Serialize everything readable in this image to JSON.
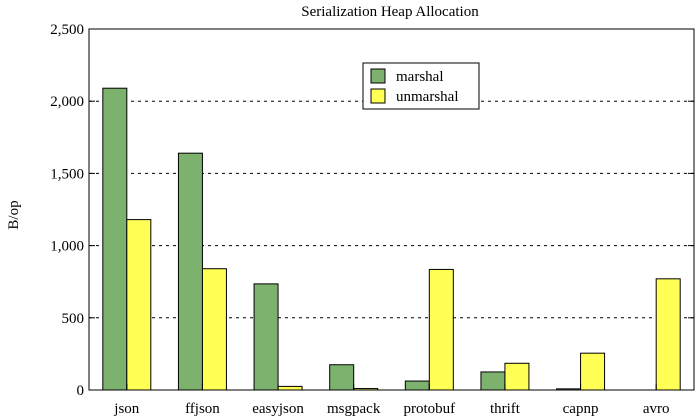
{
  "chart_data": {
    "type": "bar",
    "title": "Serialization Heap Allocation",
    "xlabel": "",
    "ylabel": "B/op",
    "ylim": [
      0,
      2500
    ],
    "yticks": [
      0,
      500,
      1000,
      1500,
      2000,
      2500
    ],
    "ytick_labels": [
      "0",
      "500",
      "1,000",
      "1,500",
      "2,000",
      "2,500"
    ],
    "grid": "horizontal dashed",
    "legend_position": "top-center",
    "categories": [
      "json",
      "ffjson",
      "easyjson",
      "msgpack",
      "protobuf",
      "thrift",
      "capnp",
      "avro"
    ],
    "series": [
      {
        "name": "marshal",
        "color": "#7cb26e",
        "values": [
          2090,
          1640,
          735,
          175,
          62,
          125,
          8,
          0
        ]
      },
      {
        "name": "unmarshal",
        "color": "#ffff55",
        "values": [
          1180,
          840,
          25,
          10,
          835,
          185,
          255,
          770
        ]
      }
    ]
  }
}
